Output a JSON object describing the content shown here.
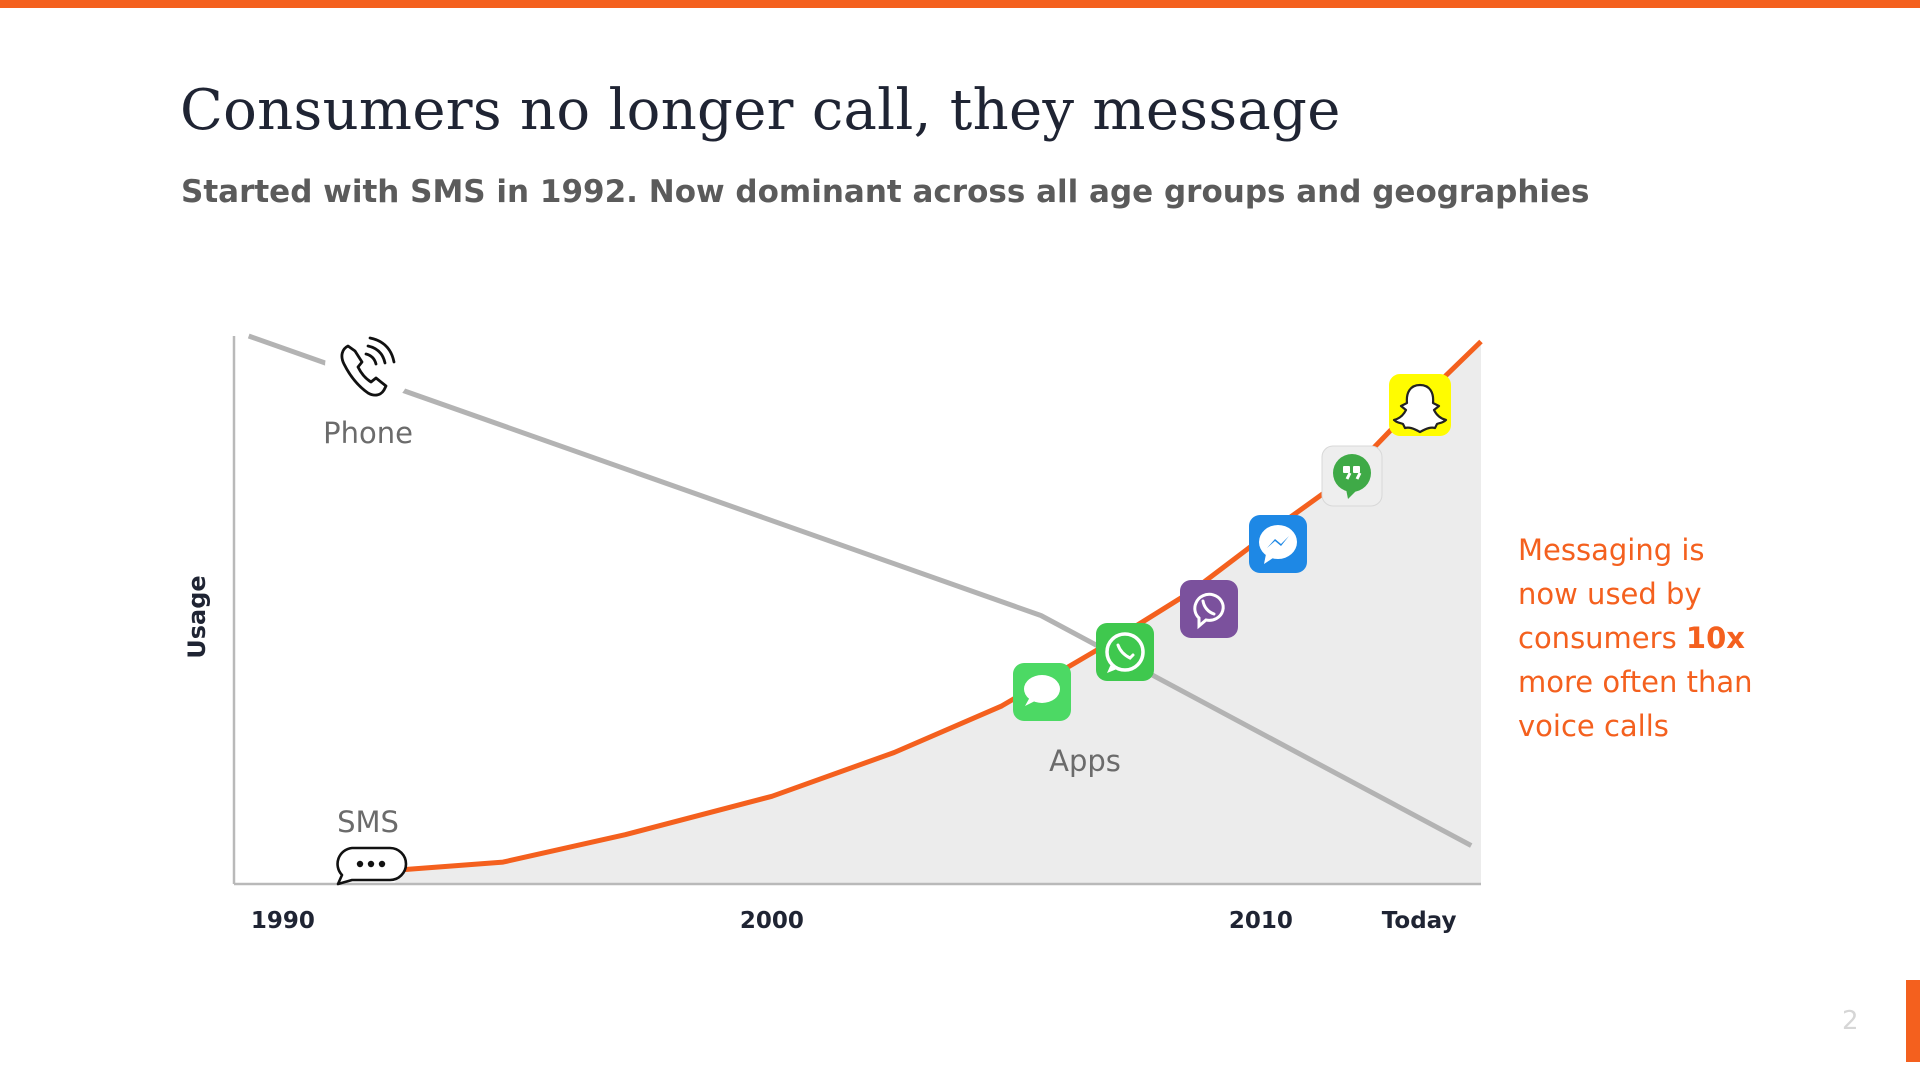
{
  "slide": {
    "title": "Consumers no longer call, they message",
    "subtitle": "Started with SMS in 1992. Now dominant across all age groups and geographies",
    "callout": {
      "line1": "Messaging is",
      "line2": "now used by",
      "line3_pre": "consumers ",
      "line3_bold": "10x",
      "line4": "more often than",
      "line5": "voice calls"
    },
    "page_number": "2"
  },
  "colors": {
    "accent": "#f4601e",
    "phone_line": "#b3b3b3",
    "area_fill": "#ececec",
    "title": "#1f2433"
  },
  "icons": {
    "phone": "phone-ringing-icon",
    "sms": "speech-bubble-icon",
    "apps": [
      "imessage-icon",
      "whatsapp-icon",
      "viber-icon",
      "messenger-icon",
      "hangouts-icon",
      "snapchat-icon"
    ]
  },
  "chart_data": {
    "type": "line",
    "ylabel": "Usage",
    "xlabel": "",
    "x_ticks": [
      {
        "x": 1991,
        "label": "1990"
      },
      {
        "x": 2001,
        "label": "2000"
      },
      {
        "x": 2011,
        "label": "2010"
      },
      {
        "x": 2015,
        "label": "Today"
      }
    ],
    "xlim": [
      1990,
      2015.5
    ],
    "ylim": [
      0,
      100
    ],
    "grid": false,
    "legend": "none",
    "area_under": "messaging",
    "series": [
      {
        "name": "Phone",
        "key": "phone",
        "color": "#b3b3b3",
        "points": [
          [
            1990.3,
            100
          ],
          [
            2006.5,
            49
          ],
          [
            2015.3,
            7
          ]
        ]
      },
      {
        "name": "SMS",
        "key": "messaging",
        "color": "#f4601e",
        "points": [
          [
            1993.3,
            2.5
          ],
          [
            1995.5,
            4
          ],
          [
            1998,
            9
          ],
          [
            2001,
            16
          ],
          [
            2003.5,
            24
          ],
          [
            2005.7,
            32.5
          ],
          [
            2007.8,
            43.5
          ],
          [
            2009.6,
            53.5
          ],
          [
            2011.3,
            65
          ],
          [
            2012.7,
            74
          ],
          [
            2014,
            86
          ],
          [
            2015.5,
            99
          ]
        ]
      }
    ],
    "annotations": [
      {
        "text": "Phone",
        "series": "phone"
      },
      {
        "text": "SMS",
        "series": "messaging"
      },
      {
        "text": "Apps",
        "series": "messaging"
      }
    ]
  }
}
